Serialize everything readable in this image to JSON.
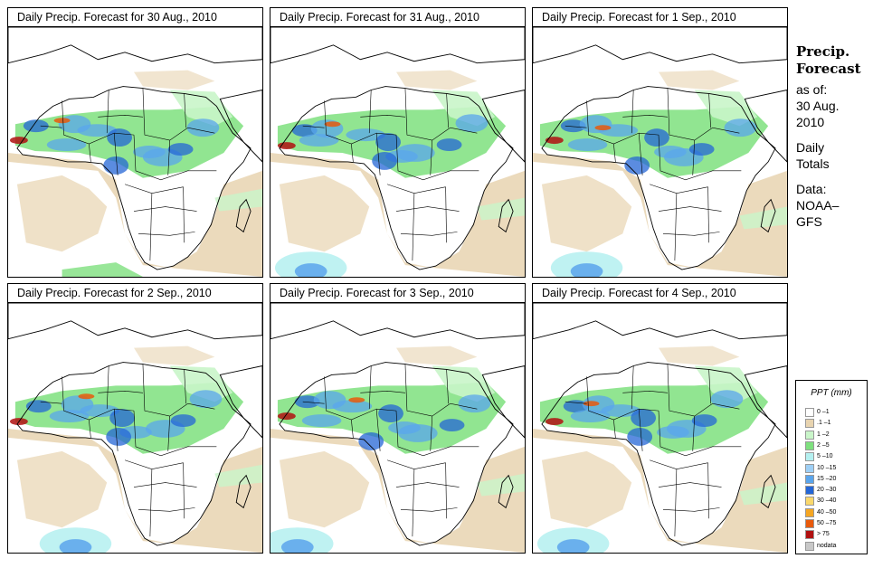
{
  "panels": [
    {
      "title": "Daily Precip. Forecast for  30 Aug., 2010"
    },
    {
      "title": "Daily Precip. Forecast for  31 Aug., 2010"
    },
    {
      "title": "Daily Precip. Forecast for  1 Sep., 2010"
    },
    {
      "title": "Daily Precip. Forecast for  2 Sep., 2010"
    },
    {
      "title": "Daily Precip. Forecast for  3 Sep., 2010"
    },
    {
      "title": "Daily Precip. Forecast for  4 Sep., 2010"
    }
  ],
  "side": {
    "title_1": "Precip.",
    "title_2": "Forecast",
    "asof_label": "as of:",
    "date_1": "30 Aug.",
    "date_2": "2010",
    "daily_1": "Daily",
    "daily_2": "Totals",
    "data_1": "Data:",
    "data_2": "NOAA–",
    "data_3": "GFS"
  },
  "legend": {
    "title": "PPT (mm)",
    "items": [
      {
        "label": "0 –1",
        "color": "#ffffff"
      },
      {
        "label": ".1 –1",
        "color": "#e8d4b0"
      },
      {
        "label": "1 –2",
        "color": "#c9f5c9"
      },
      {
        "label": "2 –5",
        "color": "#7ee07e"
      },
      {
        "label": "5 –10",
        "color": "#b4f0f0"
      },
      {
        "label": "10 –15",
        "color": "#9ecff5"
      },
      {
        "label": "15 –20",
        "color": "#5aa5ec"
      },
      {
        "label": "20 –30",
        "color": "#2466d6"
      },
      {
        "label": "30 –40",
        "color": "#fad86c"
      },
      {
        "label": "40 –50",
        "color": "#f5a623"
      },
      {
        "label": "50 –75",
        "color": "#e85a0c"
      },
      {
        "label": "> 75",
        "color": "#b01010"
      },
      {
        "label": "nodata",
        "color": "#c8c8c8"
      }
    ]
  },
  "colors": {
    "dry": "#e8d4b0",
    "green": "#7ee07e",
    "lightgreen": "#c9f5c9",
    "blue": "#5aa5ec",
    "darkblue": "#2466d6",
    "cyan": "#b4f0f0",
    "red": "#b01010",
    "orange": "#e85a0c"
  }
}
